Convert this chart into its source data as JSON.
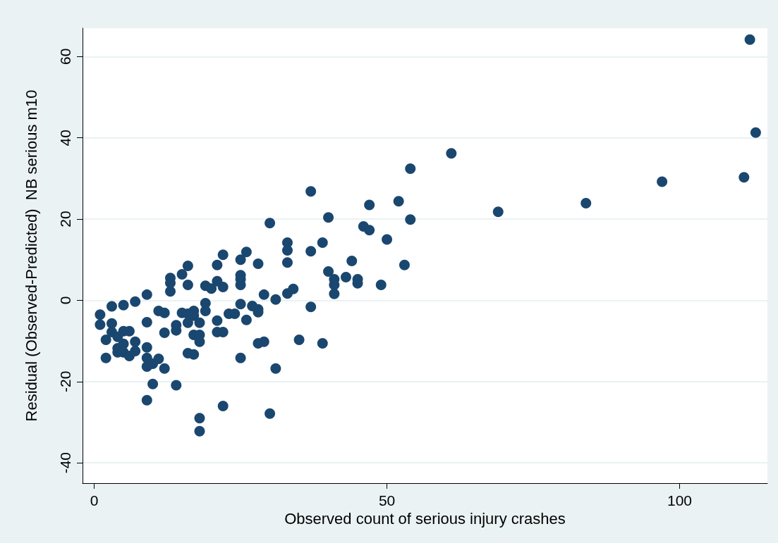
{
  "chart_data": {
    "type": "scatter",
    "xlabel": "Observed count of serious injury crashes",
    "ylabel": "Residual (Observed-Predicted)  NB serious m10",
    "x": [
      1,
      1,
      2,
      2,
      3,
      3,
      3,
      4,
      4,
      4,
      5,
      5,
      5,
      5,
      6,
      6,
      7,
      7,
      7,
      9,
      9,
      9,
      9,
      9,
      9,
      10,
      10,
      11,
      11,
      12,
      12,
      12,
      13,
      13,
      13,
      14,
      14,
      14,
      15,
      15,
      16,
      16,
      16,
      16,
      16,
      17,
      17,
      17,
      17,
      18,
      18,
      18,
      18,
      18,
      19,
      19,
      19,
      20,
      21,
      21,
      21,
      21,
      22,
      22,
      22,
      22,
      23,
      24,
      25,
      25,
      25,
      25,
      25,
      25,
      26,
      26,
      27,
      28,
      28,
      28,
      28,
      29,
      29,
      30,
      30,
      31,
      31,
      33,
      33,
      33,
      33,
      34,
      35,
      37,
      37,
      37,
      39,
      39,
      40,
      40,
      41,
      41,
      41,
      43,
      44,
      45,
      45,
      46,
      47,
      47,
      49,
      50,
      52,
      53,
      54,
      54,
      61,
      69,
      84,
      97,
      111,
      112,
      113
    ],
    "values": [
      -3.5,
      -6,
      -9.7,
      -14.2,
      -1.5,
      -5.7,
      -7.8,
      -9,
      -11.8,
      -12.8,
      -1.2,
      -7.6,
      -10.7,
      -12.8,
      -7.6,
      -13.7,
      -0.3,
      -10.2,
      -12.5,
      1.4,
      -5.4,
      -11.6,
      -14.2,
      -16.3,
      -24.6,
      -15.6,
      -20.6,
      -2.6,
      -14.4,
      -3.1,
      -8,
      -16.8,
      5.5,
      4.3,
      2.2,
      -6.1,
      -7.4,
      -20.9,
      6.4,
      -3.1,
      8.5,
      3.8,
      -3.3,
      -5.5,
      -13,
      -2.6,
      -3.8,
      -8.5,
      -13.3,
      -5.5,
      -8.5,
      -10.2,
      -29,
      -32.2,
      3.6,
      -0.7,
      -2.6,
      2.9,
      8.7,
      4.7,
      -5,
      -7.8,
      11.2,
      3.3,
      -7.8,
      -26,
      -3.3,
      -3.3,
      10,
      6.2,
      5.2,
      3.8,
      -0.9,
      -14.2,
      11.9,
      -4.8,
      -1.4,
      9,
      -2.2,
      -2.9,
      -10.6,
      1.4,
      -10.2,
      19,
      -27.9,
      0.2,
      -16.8,
      14.2,
      12.3,
      9.3,
      1.7,
      2.8,
      -9.7,
      26.8,
      12.1,
      -1.6,
      14.2,
      -10.6,
      20.4,
      7.1,
      5.2,
      3.8,
      1.6,
      5.7,
      9.7,
      5.2,
      4.2,
      18.2,
      23.5,
      17.3,
      3.8,
      15,
      24.4,
      8.7,
      32.4,
      19.9,
      36.2,
      21.8,
      23.9,
      29.2,
      30.3,
      64.2,
      41.3
    ],
    "color": "#1a476f",
    "marker": "circle",
    "grid": "y",
    "xlim": [
      -2,
      115
    ],
    "xticks": [
      0,
      50,
      100
    ],
    "ylim": [
      -45,
      67
    ],
    "yticks": [
      -40,
      -20,
      0,
      20,
      40,
      60
    ]
  }
}
